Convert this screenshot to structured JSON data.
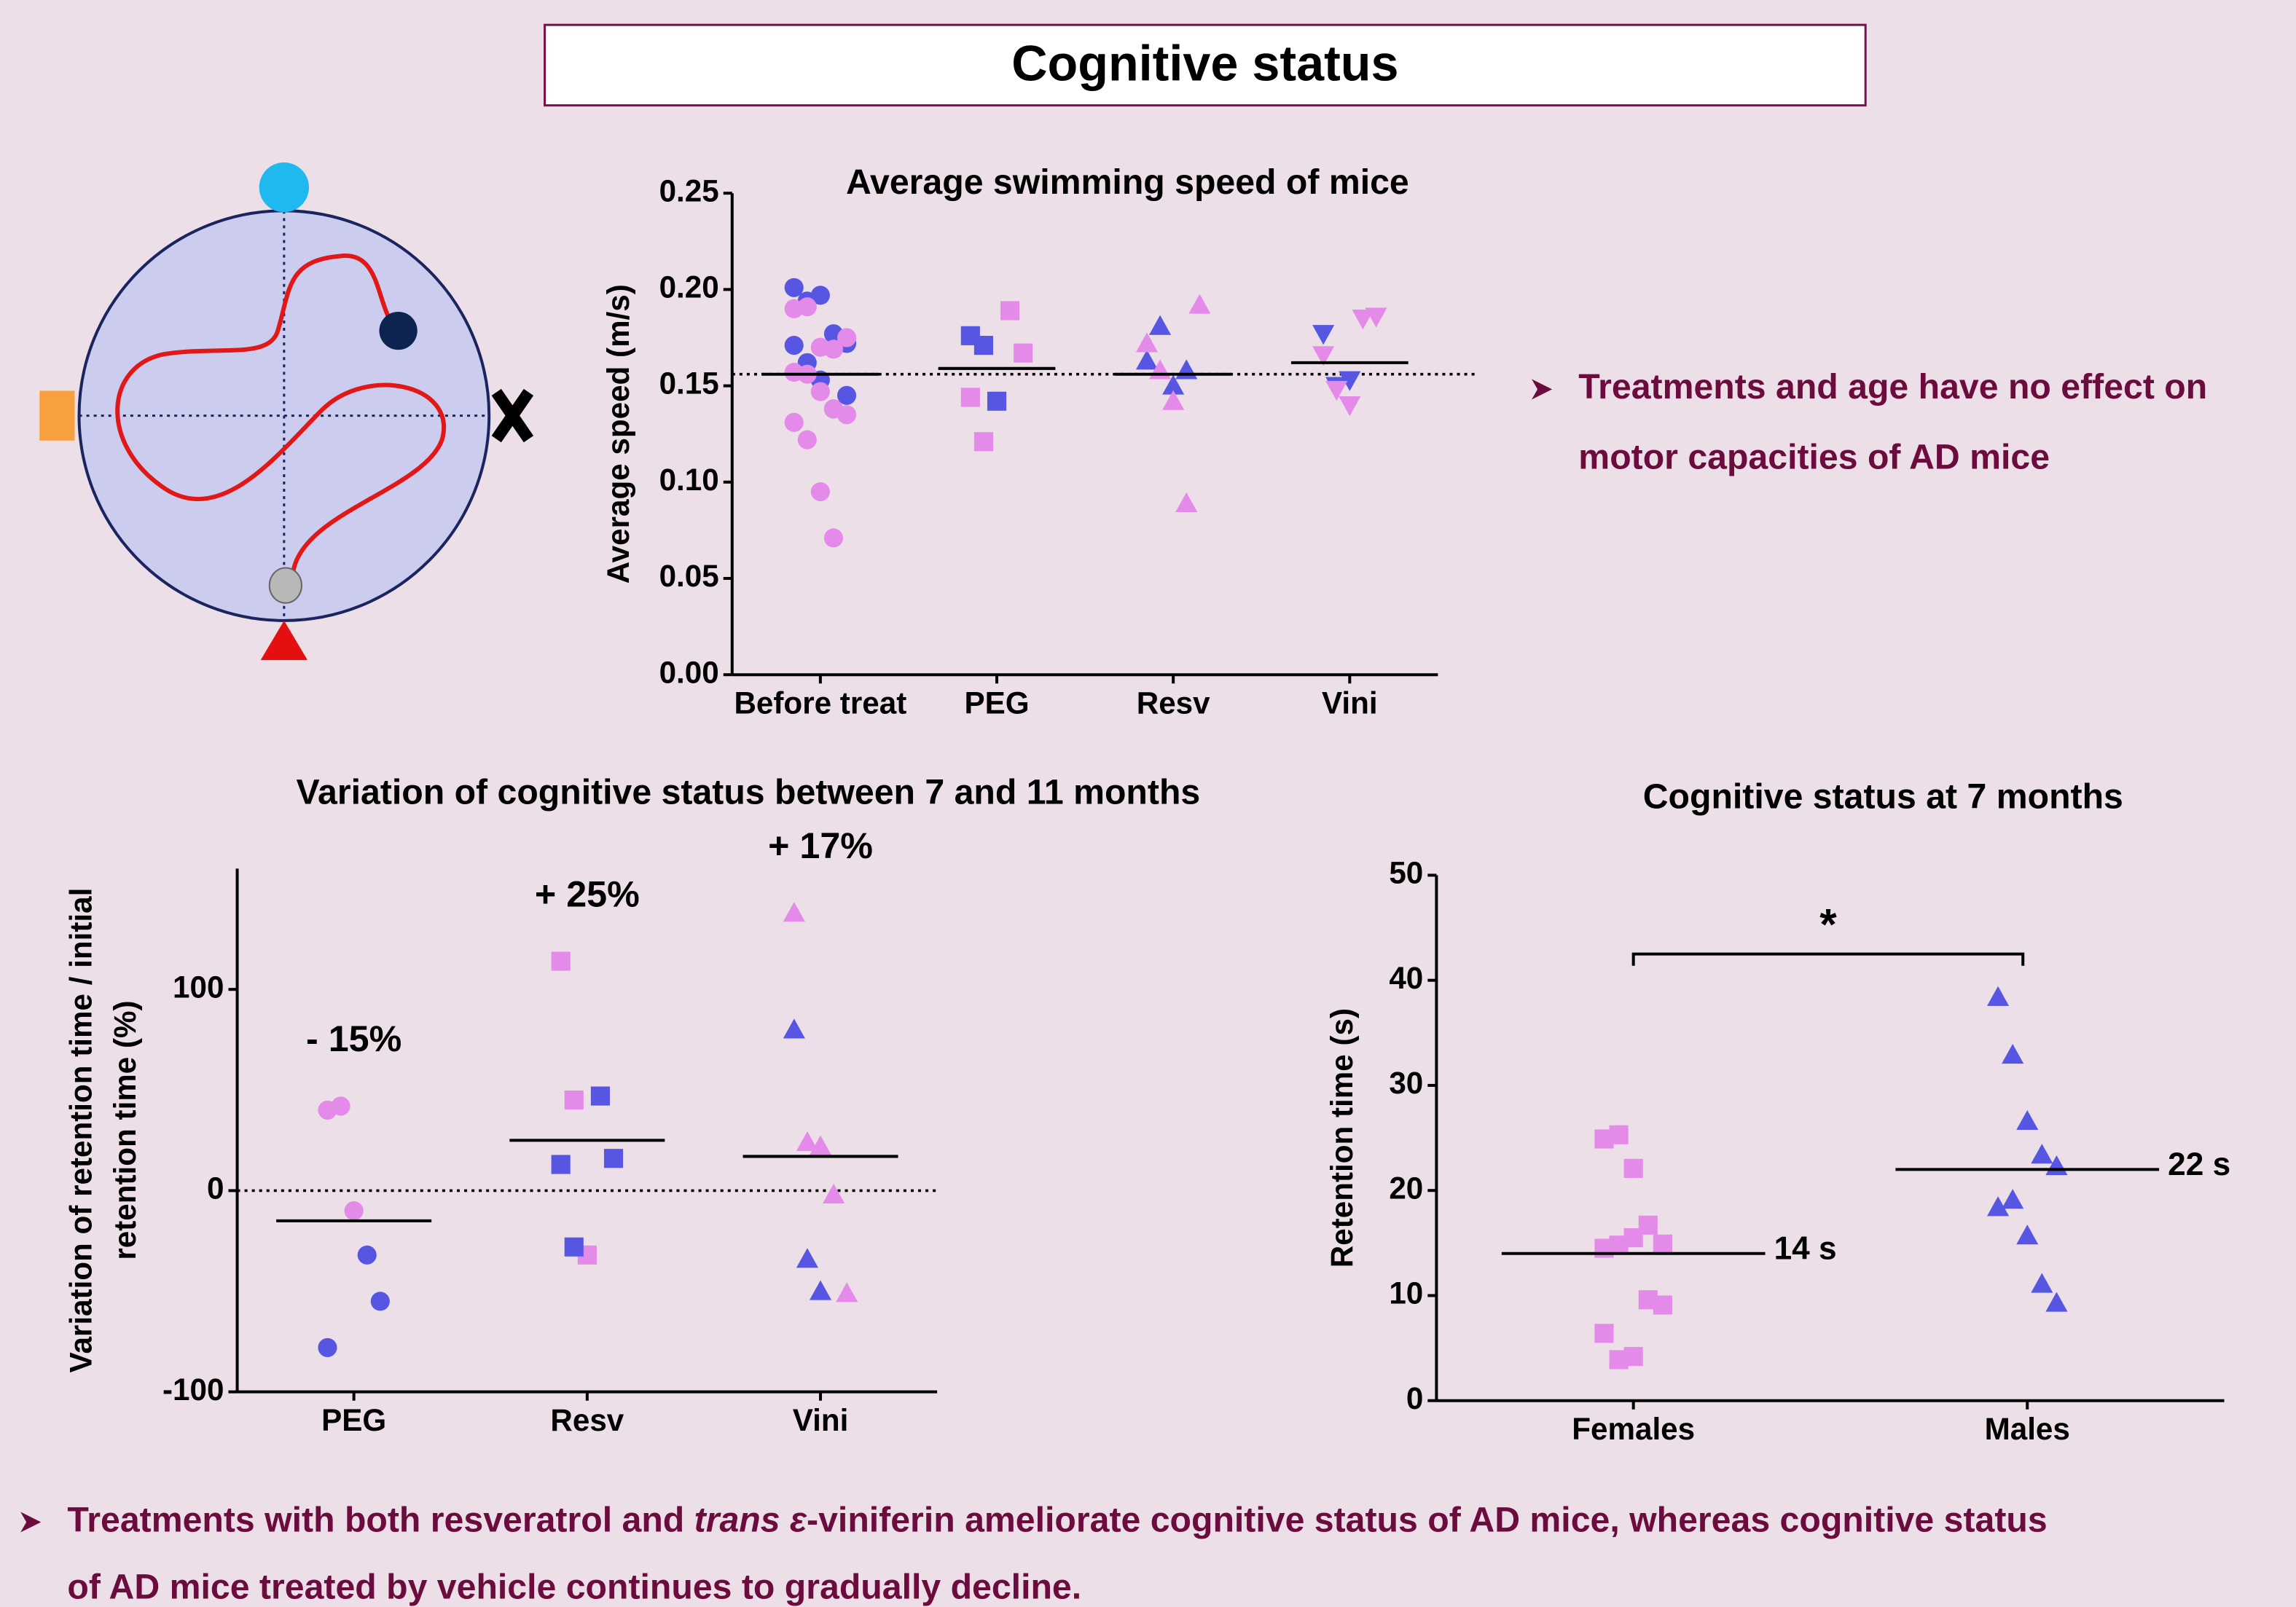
{
  "header": {
    "title": "Cognitive status"
  },
  "notes": {
    "top": [
      "Treatments and age have no effect on",
      "motor capacities of AD mice"
    ],
    "bottom": {
      "line1": [
        "Treatments with both resveratrol and ",
        "trans ε",
        "-viniferin ameliorate cognitive status of AD mice, whereas cognitive status"
      ],
      "line2": "of AD mice treated by vehicle continues to gradually decline."
    }
  },
  "chart_data": [
    {
      "type": "strip",
      "title": "Average swimming speed of mice",
      "y_label": [
        "Average speed (m/s)"
      ],
      "categories": [
        "Before treat",
        "PEG",
        "Resv",
        "Vini"
      ],
      "ylim": [
        0,
        0.25
      ],
      "yticks": [
        {
          "value": 0,
          "label": "0.00"
        },
        {
          "value": 0.05,
          "label": "0.05"
        },
        {
          "value": 0.1,
          "label": "0.10"
        },
        {
          "value": 0.15,
          "label": "0.15"
        },
        {
          "value": 0.2,
          "label": "0.20"
        },
        {
          "value": 0.25,
          "label": "0.25"
        }
      ],
      "hline": 0.156,
      "groups": [
        {
          "shape": "circle",
          "mean": 0.156,
          "sets": [
            {
              "color": "#5656e2",
              "values": [
                0.201,
                0.194,
                0.197,
                0.177,
                0.172,
                0.171,
                0.162,
                0.153,
                0.138,
                0.145
              ]
            },
            {
              "color": "#e48ae9",
              "values": [
                0.19,
                0.191,
                0.17,
                0.169,
                0.175,
                0.157,
                0.156,
                0.147,
                0.138,
                0.135,
                0.131,
                0.122,
                0.095,
                0.071
              ]
            }
          ]
        },
        {
          "shape": "square",
          "mean": 0.159,
          "sets": [
            {
              "color": "#5656e2",
              "values": [
                0.176,
                0.171,
                0.142
              ]
            },
            {
              "color": "#e48ae9",
              "values": [
                0.189,
                0.167,
                0.144,
                0.121
              ]
            }
          ]
        },
        {
          "shape": "triangle",
          "mean": 0.156,
          "sets": [
            {
              "color": "#5656e2",
              "values": [
                0.163,
                0.181,
                0.15,
                0.158
              ]
            },
            {
              "color": "#e48ae9",
              "values": [
                0.192,
                0.172,
                0.158,
                0.142,
                0.089
              ]
            }
          ]
        },
        {
          "shape": "triangle-down",
          "mean": 0.162,
          "sets": [
            {
              "color": "#5656e2",
              "values": [
                0.177,
                0.15,
                0.153
              ]
            },
            {
              "color": "#e48ae9",
              "values": [
                0.185,
                0.186,
                0.166,
                0.148,
                0.14
              ]
            }
          ]
        }
      ]
    },
    {
      "type": "strip",
      "title": "Variation of cognitive status between 7 and 11 months",
      "y_label": [
        "Variation of retention time / initial",
        "retention time (%)"
      ],
      "categories": [
        "PEG",
        "Resv",
        "Vini"
      ],
      "ylim": [
        -100,
        160
      ],
      "yticks": [
        -100,
        0,
        100
      ],
      "hline": 0,
      "groups": [
        {
          "shape": "circle",
          "mean": -15,
          "mean_label": "- 15%",
          "sets": [
            {
              "color": "#e48ae9",
              "values": [
                40,
                42,
                -10
              ]
            },
            {
              "color": "#5656e2",
              "values": [
                -32,
                -55,
                -78
              ]
            }
          ]
        },
        {
          "shape": "square",
          "mean": 25,
          "mean_label": "+ 25%",
          "sets": [
            {
              "color": "#e48ae9",
              "values": [
                114,
                45,
                -32
              ]
            },
            {
              "color": "#5656e2",
              "values": [
                47,
                16,
                13,
                -28
              ]
            }
          ]
        },
        {
          "shape": "triangle",
          "mean": 17,
          "mean_label": "+ 17%",
          "sets": [
            {
              "color": "#e48ae9",
              "values": [
                138,
                24,
                22,
                -2,
                -51
              ]
            },
            {
              "color": "#5656e2",
              "values": [
                80,
                -34,
                -50
              ]
            }
          ]
        }
      ]
    },
    {
      "type": "strip",
      "title": "Cognitive status at 7 months",
      "y_label": [
        "Retention time (s)"
      ],
      "categories": [
        "Females",
        "Males"
      ],
      "ylim": [
        0,
        50
      ],
      "yticks": [
        0,
        10,
        20,
        30,
        40,
        50
      ],
      "significance": {
        "label": "*",
        "y": 42.5
      },
      "groups": [
        {
          "shape": "square",
          "mean": 14,
          "mean_label": "14 s",
          "sets": [
            {
              "color": "#e48ae9",
              "values": [
                24.9,
                25.3,
                22.1,
                16.7,
                14.9,
                14.5,
                14.8,
                15.5,
                9.6,
                9.1,
                6.4,
                3.9,
                4.2
              ]
            }
          ]
        },
        {
          "shape": "triangle",
          "mean": 22,
          "mean_label": "22 s",
          "sets": [
            {
              "color": "#5656e2",
              "values": [
                38.4,
                32.9,
                26.6,
                23.4,
                22.3,
                18.4,
                19.1,
                15.7,
                11.1,
                9.3
              ]
            }
          ]
        }
      ]
    }
  ]
}
